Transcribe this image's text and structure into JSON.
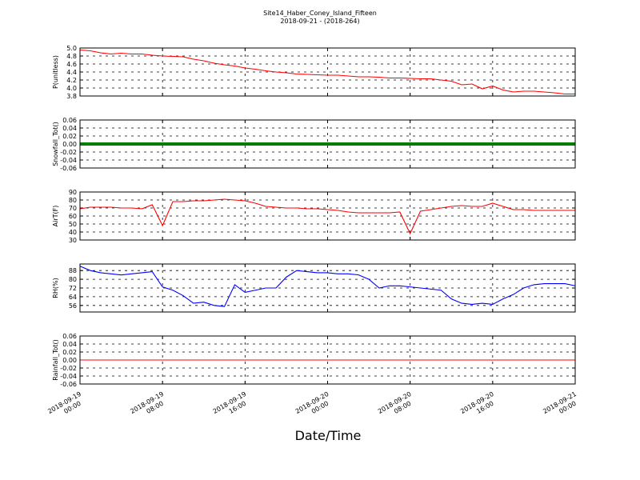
{
  "chart_data": {
    "type": "line",
    "title": "Site14_Haber_Coney_Island_Fifteen",
    "subtitle": "2018-09-21 - (2018-264)",
    "xlabel": "Date/Time",
    "xlim": [
      "2018-09-19 00:00",
      "2018-09-21 00:00"
    ],
    "xticks": [
      "2018-09-19 00:00",
      "2018-09-19 08:00",
      "2018-09-19 16:00",
      "2018-09-20 00:00",
      "2018-09-20 08:00",
      "2018-09-20 16:00",
      "2018-09-21 00:00"
    ],
    "grid": true,
    "x": [
      "2018-09-19 00:00",
      "2018-09-19 01:00",
      "2018-09-19 02:00",
      "2018-09-19 03:00",
      "2018-09-19 04:00",
      "2018-09-19 05:00",
      "2018-09-19 06:00",
      "2018-09-19 07:00",
      "2018-09-19 08:00",
      "2018-09-19 09:00",
      "2018-09-19 10:00",
      "2018-09-19 11:00",
      "2018-09-19 12:00",
      "2018-09-19 13:00",
      "2018-09-19 14:00",
      "2018-09-19 15:00",
      "2018-09-19 16:00",
      "2018-09-19 17:00",
      "2018-09-19 18:00",
      "2018-09-19 19:00",
      "2018-09-19 20:00",
      "2018-09-19 21:00",
      "2018-09-19 22:00",
      "2018-09-19 23:00",
      "2018-09-20 00:00",
      "2018-09-20 01:00",
      "2018-09-20 02:00",
      "2018-09-20 03:00",
      "2018-09-20 04:00",
      "2018-09-20 05:00",
      "2018-09-20 06:00",
      "2018-09-20 07:00",
      "2018-09-20 08:00",
      "2018-09-20 09:00",
      "2018-09-20 10:00",
      "2018-09-20 11:00",
      "2018-09-20 12:00",
      "2018-09-20 13:00",
      "2018-09-20 14:00",
      "2018-09-20 15:00",
      "2018-09-20 16:00",
      "2018-09-20 17:00",
      "2018-09-20 18:00",
      "2018-09-20 19:00",
      "2018-09-20 20:00",
      "2018-09-20 21:00",
      "2018-09-20 22:00",
      "2018-09-20 23:00",
      "2018-09-21 00:00"
    ],
    "panels": [
      {
        "ylabel": "P(unitless)",
        "ylim": [
          3.8,
          5.0
        ],
        "color": "#ff0000",
        "yticks": [
          3.8,
          {
            "value": 4.0,
            "label": "4.0"
          },
          4.2,
          4.4,
          4.6,
          4.8,
          {
            "value": 5.0,
            "label": "5.0"
          }
        ],
        "values": [
          4.95,
          4.93,
          4.88,
          4.85,
          4.87,
          4.85,
          4.85,
          4.82,
          4.8,
          4.79,
          4.78,
          4.72,
          4.68,
          4.62,
          4.58,
          4.55,
          4.5,
          4.47,
          4.43,
          4.4,
          4.38,
          4.35,
          4.34,
          4.33,
          4.32,
          4.32,
          4.3,
          4.28,
          4.28,
          4.27,
          4.25,
          4.25,
          4.24,
          4.23,
          4.23,
          4.2,
          4.17,
          4.08,
          4.1,
          3.98,
          4.05,
          3.95,
          3.9,
          3.92,
          3.92,
          3.9,
          3.88,
          3.85,
          3.85
        ]
      },
      {
        "ylabel": "Snowfall_Tot()",
        "ylim": [
          -0.06,
          0.06
        ],
        "color": "#008000",
        "marker": "o",
        "yticks": [
          -0.06,
          -0.04,
          -0.02,
          {
            "value": 0,
            "label": "0.00"
          },
          0.02,
          0.04,
          0.06
        ],
        "values": [
          0,
          0,
          0,
          0,
          0,
          0,
          0,
          0,
          0,
          0,
          0,
          0,
          0,
          0,
          0,
          0,
          0,
          0,
          0,
          0,
          0,
          0,
          0,
          0,
          0,
          0,
          0,
          0,
          0,
          0,
          0,
          0,
          0,
          0,
          0,
          0,
          0,
          0,
          0,
          0,
          0,
          0,
          0,
          0,
          0,
          0,
          0,
          0,
          0
        ]
      },
      {
        "ylabel": "AirT(F)",
        "ylim": [
          30,
          90
        ],
        "color": "#ff0000",
        "yticks": [
          30,
          40,
          50,
          60,
          70,
          80,
          90
        ],
        "values": [
          69,
          71,
          71,
          71,
          70,
          70,
          69,
          74,
          48,
          78,
          78,
          79,
          79,
          80,
          81,
          80,
          79,
          76,
          72,
          71,
          70,
          70,
          69,
          69,
          68,
          67,
          65,
          64,
          64,
          64,
          64,
          65,
          38,
          66,
          68,
          70,
          72,
          73,
          72,
          72,
          76,
          72,
          68,
          68,
          67,
          67,
          67,
          67,
          67
        ]
      },
      {
        "ylabel": "RH(%)",
        "ylim": [
          50,
          94
        ],
        "color": "#0000ff",
        "yticks": [
          56,
          64,
          72,
          80,
          88
        ],
        "values": [
          92,
          88,
          86,
          85,
          84,
          85,
          86,
          87,
          73,
          70,
          65,
          58,
          59,
          56,
          55,
          75,
          68,
          70,
          72,
          72,
          82,
          88,
          87,
          86,
          86,
          85,
          85,
          84,
          80,
          72,
          74,
          74,
          73,
          72,
          71,
          70,
          62,
          58,
          57,
          58,
          57,
          62,
          66,
          72,
          75,
          76,
          76,
          76,
          74
        ]
      },
      {
        "ylabel": "Rainfall_Tot()",
        "ylim": [
          -0.06,
          0.06
        ],
        "color": "#ff0000",
        "yticks": [
          -0.06,
          -0.04,
          -0.02,
          {
            "value": 0,
            "label": "0.00"
          },
          0.02,
          0.04,
          0.06
        ],
        "values": [
          0,
          0,
          0,
          0,
          0,
          0,
          0,
          0,
          0,
          0,
          0,
          0,
          0,
          0,
          0,
          0,
          0,
          0,
          0,
          0,
          0,
          0,
          0,
          0,
          0,
          0,
          0,
          0,
          0,
          0,
          0,
          0,
          0,
          0,
          0,
          0,
          0,
          0,
          0,
          0,
          0,
          0,
          0,
          0,
          0,
          0,
          0,
          0,
          0
        ]
      }
    ]
  }
}
